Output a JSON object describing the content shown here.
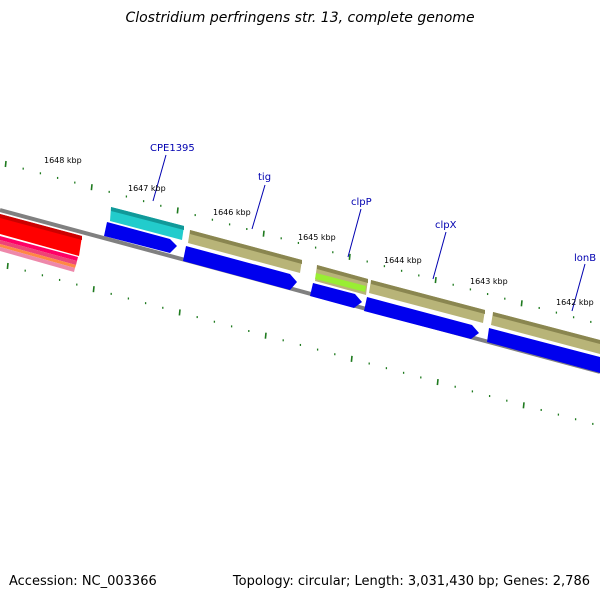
{
  "title": "Clostridium perfringens str. 13, complete genome",
  "footer": {
    "accession": "Accession: NC_003366",
    "stats": "Topology: circular; Length: 3,031,430 bp; Genes: 2,786"
  },
  "kbp_labels": [
    "1648 kbp",
    "1647 kbp",
    "1646 kbp",
    "1645 kbp",
    "1644 kbp",
    "1643 kbp",
    "1642 kbp"
  ],
  "genes": [
    {
      "name": "CPE1395"
    },
    {
      "name": "tig"
    },
    {
      "name": "clpP"
    },
    {
      "name": "clpX"
    },
    {
      "name": "lonB"
    }
  ],
  "colors": {
    "backbone": "#808080",
    "tick": "#1e7a1e",
    "cds_blue": "#0000ee",
    "gene_olive": "#b8b478",
    "gene_cyan": "#22cccc",
    "gene_lime": "#99ee33",
    "gene_red": "#ff0000",
    "label_blue": "#0000b0"
  }
}
